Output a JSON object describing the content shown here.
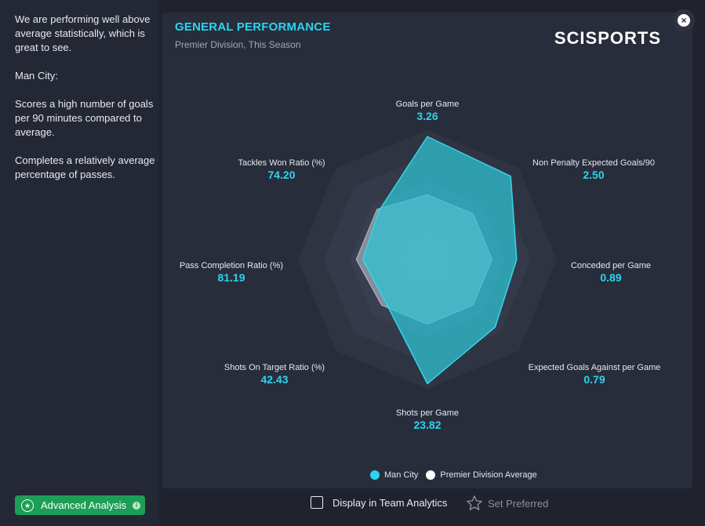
{
  "summary": {
    "paragraphs": [
      "We are performing well above average statistically, which is great to see.",
      "Man City:",
      "Scores a high number of goals per 90 minutes compared to average.",
      "Completes a relatively average percentage of passes."
    ]
  },
  "card": {
    "title": "GENERAL PERFORMANCE",
    "subtitle": "Premier Division, This Season",
    "logo": "SCISPORTS"
  },
  "close_label": "×",
  "chart_data": {
    "type": "radar",
    "title": "GENERAL PERFORMANCE",
    "subtitle": "Premier Division, This Season",
    "axes": [
      {
        "label": "Goals per Game",
        "value_label": "3.26"
      },
      {
        "label": "Non Penalty Expected Goals/90",
        "value_label": "2.50"
      },
      {
        "label": "Conceded per Game",
        "value_label": "0.89"
      },
      {
        "label": "Expected Goals Against per Game",
        "value_label": "0.79"
      },
      {
        "label": "Shots per Game",
        "value_label": "23.82"
      },
      {
        "label": "Shots On Target Ratio (%)",
        "value_label": "42.43"
      },
      {
        "label": "Pass Completion Ratio (%)",
        "value_label": "81.19"
      },
      {
        "label": "Tackles Won Ratio (%)",
        "value_label": "74.20"
      }
    ],
    "scale": [
      0,
      1
    ],
    "rings": 5,
    "series": [
      {
        "name": "Man City",
        "color": "#2ec6d8",
        "values": [
          0.95,
          0.91,
          0.69,
          0.74,
          0.96,
          0.46,
          0.5,
          0.53
        ]
      },
      {
        "name": "Premier Division Average",
        "color": "#ffffff",
        "values": [
          0.5,
          0.5,
          0.5,
          0.5,
          0.5,
          0.5,
          0.55,
          0.55
        ]
      }
    ],
    "legend_position": "bottom"
  },
  "colors": {
    "accent": "#2bd4ee",
    "series_fill": "#2ec6d8",
    "average": "#ffffff",
    "button_green": "#1d9e57"
  },
  "footer": {
    "advanced_label": "Advanced Analysis",
    "display_label": "Display in Team Analytics",
    "preferred_label": "Set Preferred"
  }
}
